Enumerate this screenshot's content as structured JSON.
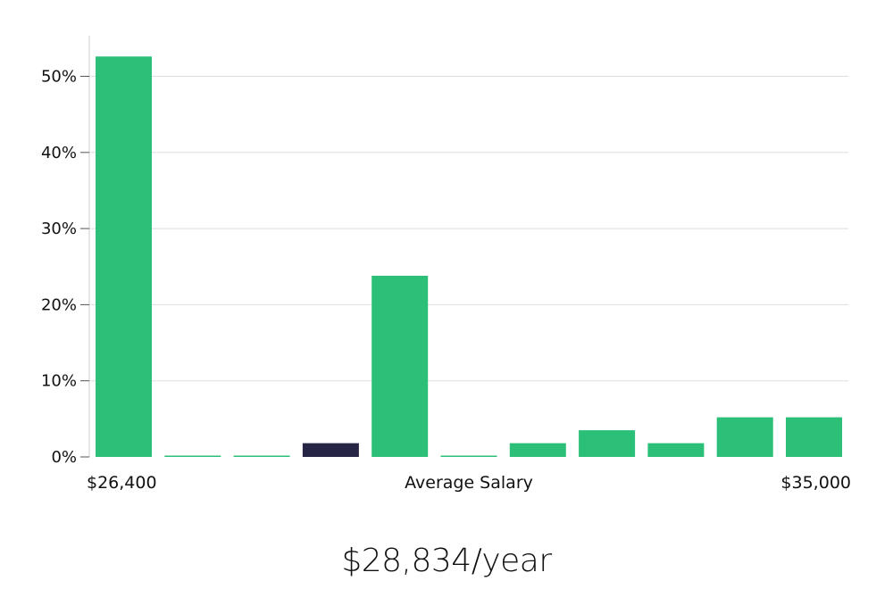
{
  "chart_data": {
    "type": "bar",
    "title": "",
    "xlabel": "Average Salary",
    "ylabel": "",
    "x_range_labels": {
      "min": "$26,400",
      "max": "$35,000"
    },
    "y_ticks": [
      "0%",
      "10%",
      "20%",
      "30%",
      "40%",
      "50%"
    ],
    "ylim": [
      0,
      55
    ],
    "grid": true,
    "legend": "none",
    "values": [
      52.6,
      0,
      0,
      1.8,
      23.8,
      0,
      1.8,
      3.5,
      1.8,
      5.2,
      5.2
    ],
    "highlight_index": 3,
    "colors": {
      "bar": "#2bbf78",
      "highlight": "#272546",
      "grid": "#dddddd",
      "axis": "#cccccc"
    }
  },
  "summary": {
    "average_salary": "$28,834/year"
  }
}
